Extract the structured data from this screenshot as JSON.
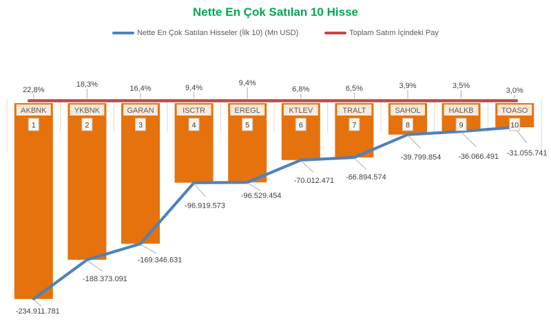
{
  "title": {
    "text": "Nette En Çok Satılan 10 Hisse",
    "color": "#00A651"
  },
  "legend": {
    "items": [
      {
        "label": "Nette En Çok Satılan Hisseler (İlk 10) (Mn USD)",
        "color": "#4E81BD"
      },
      {
        "label": "Toplam Satım İçindeki Pay",
        "color": "#BE4B48"
      }
    ]
  },
  "chart_data": {
    "type": "bar",
    "title": "Nette En Çok Satılan 10 Hisse",
    "categories": [
      "AKBNK",
      "YKBNK",
      "GARAN",
      "ISCTR",
      "EREGL",
      "KTLEV",
      "TRALT",
      "SAHOL",
      "HALKB",
      "TOASO"
    ],
    "ranks": [
      "1",
      "2",
      "3",
      "4",
      "5",
      "6",
      "7",
      "8",
      "9",
      "10"
    ],
    "series": [
      {
        "name": "Nette En Çok Satılan Hisseler (İlk 10) (Mn USD)",
        "type": "bar+line",
        "bar_color": "#E5720D",
        "line_color": "#4E81BD",
        "values": [
          -234911781,
          -188373091,
          -169346631,
          -96919573,
          -96529454,
          -70012471,
          -66894574,
          -39799854,
          -36066491,
          -31055741
        ],
        "value_labels": [
          "-234.911.781",
          "-188.373.091",
          "-169.346.631",
          "-96.919.573",
          "-96.529.454",
          "-70.012.471",
          "-66.894.574",
          "-39.799.854",
          "-36.066.491",
          "-31.055.741"
        ]
      },
      {
        "name": "Toplam Satım İçindeki Pay",
        "type": "line",
        "axis": "secondary",
        "color": "#BE4B48",
        "values": [
          22.8,
          18.3,
          16.4,
          9.4,
          9.4,
          6.8,
          6.5,
          3.9,
          3.5,
          3.0
        ],
        "value_labels": [
          "22,8%",
          "18,3%",
          "16,4%",
          "9,4%",
          "9,4%",
          "6,8%",
          "6,5%",
          "3,9%",
          "3,5%",
          "3,0%"
        ]
      }
    ],
    "ylim": [
      -250000000,
      0
    ],
    "legend_position": "top",
    "grid": "category-separators",
    "colors": {
      "ticker_box_bg": "#FBE9DA",
      "ticker_text": "#5B5B5B",
      "rank_box_bg": "#FDF6EF",
      "rank_box_border": "#C6BFB6",
      "label_text": "#404040",
      "leader_line": "#ABABAB",
      "separator": "#DDDAD4"
    }
  }
}
